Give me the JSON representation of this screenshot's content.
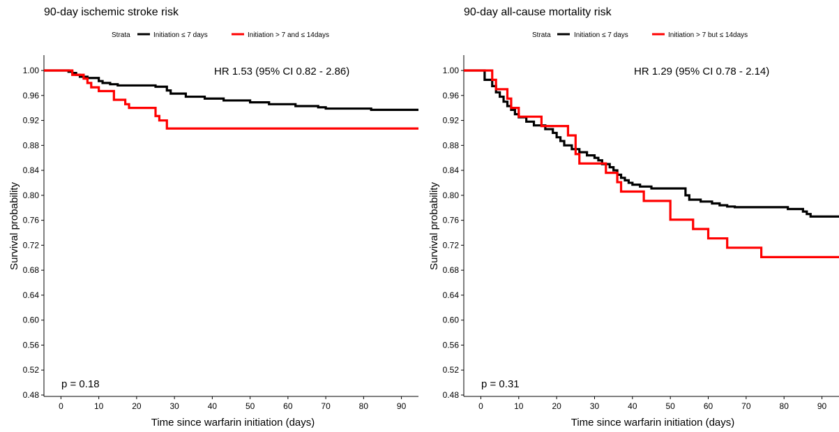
{
  "chart_data": [
    {
      "type": "line",
      "title": "90-day ischemic stroke risk",
      "legend_title": "Strata",
      "legend_position": "top",
      "xlabel": "Time since warfarin initiation (days)",
      "ylabel": "Survival probability",
      "xlim": [
        -4.5,
        94.5
      ],
      "ylim": [
        0.48,
        1.0
      ],
      "xticks": [
        0,
        10,
        20,
        30,
        40,
        50,
        60,
        70,
        80,
        90
      ],
      "yticks": [
        0.48,
        0.52,
        0.56,
        0.6,
        0.64,
        0.68,
        0.72,
        0.76,
        0.8,
        0.84,
        0.88,
        0.92,
        0.96,
        1.0
      ],
      "hr_text": "HR 1.53 (95% CI 0.82 - 2.86)",
      "p_text": "p = 0.18",
      "step": true,
      "series": [
        {
          "name": "Initiation ≤ 7 days",
          "color": "#000000",
          "x": [
            -4.5,
            2,
            3,
            4,
            5,
            7,
            10,
            11,
            13,
            15,
            25,
            28,
            29,
            33,
            38,
            43,
            50,
            55,
            62,
            68,
            70,
            82,
            94.5
          ],
          "y": [
            1.0,
            0.998,
            0.996,
            0.993,
            0.99,
            0.988,
            0.983,
            0.98,
            0.978,
            0.976,
            0.974,
            0.968,
            0.963,
            0.958,
            0.955,
            0.952,
            0.949,
            0.946,
            0.943,
            0.941,
            0.939,
            0.937,
            0.937
          ]
        },
        {
          "name": "Initiation > 7 and ≤ 14days",
          "color": "#ff0000",
          "x": [
            -4.5,
            3,
            6,
            7,
            8,
            10,
            14,
            17,
            18,
            25,
            26,
            28,
            94.5
          ],
          "y": [
            1.0,
            0.993,
            0.987,
            0.98,
            0.973,
            0.967,
            0.953,
            0.946,
            0.94,
            0.927,
            0.92,
            0.907,
            0.907
          ]
        }
      ]
    },
    {
      "type": "line",
      "title": "90-day all-cause mortality risk",
      "legend_title": "Strata",
      "legend_position": "top",
      "xlabel": "Time since warfarin initiation (days)",
      "ylabel": "Survival probability",
      "xlim": [
        -4.5,
        94.5
      ],
      "ylim": [
        0.48,
        1.0
      ],
      "xticks": [
        0,
        10,
        20,
        30,
        40,
        50,
        60,
        70,
        80,
        90
      ],
      "yticks": [
        0.48,
        0.52,
        0.56,
        0.6,
        0.64,
        0.68,
        0.72,
        0.76,
        0.8,
        0.84,
        0.88,
        0.92,
        0.96,
        1.0
      ],
      "hr_text": "HR 1.29 (95% CI 0.78 - 2.14)",
      "p_text": "p = 0.31",
      "step": true,
      "series": [
        {
          "name": "Initiation ≤ 7 days",
          "color": "#000000",
          "x": [
            -4.5,
            1,
            3,
            4,
            5,
            6,
            7,
            8,
            9,
            10,
            12,
            14,
            17,
            19,
            20,
            21,
            22,
            24,
            26,
            28,
            30,
            31,
            32,
            34,
            35,
            36,
            37,
            38,
            39,
            40,
            42,
            45,
            54,
            55,
            58,
            61,
            63,
            65,
            67,
            72,
            77,
            81,
            85,
            86,
            87,
            94.5
          ],
          "y": [
            1.0,
            0.985,
            0.975,
            0.965,
            0.958,
            0.95,
            0.943,
            0.937,
            0.93,
            0.925,
            0.918,
            0.912,
            0.906,
            0.9,
            0.893,
            0.887,
            0.88,
            0.874,
            0.869,
            0.864,
            0.86,
            0.856,
            0.85,
            0.845,
            0.84,
            0.833,
            0.828,
            0.824,
            0.82,
            0.817,
            0.814,
            0.811,
            0.8,
            0.793,
            0.79,
            0.787,
            0.784,
            0.782,
            0.781,
            0.781,
            0.781,
            0.778,
            0.774,
            0.77,
            0.766,
            0.766
          ]
        },
        {
          "name": "Initiation > 7 but ≤ 14days",
          "color": "#ff0000",
          "x": [
            -4.5,
            3,
            4,
            5,
            7,
            8,
            10,
            13,
            16,
            21,
            23,
            25,
            26,
            29,
            33,
            36,
            37,
            40,
            43,
            50,
            53,
            56,
            60,
            65,
            70,
            74,
            94.5
          ],
          "y": [
            1.0,
            0.985,
            0.97,
            0.97,
            0.955,
            0.94,
            0.926,
            0.926,
            0.911,
            0.911,
            0.896,
            0.866,
            0.851,
            0.851,
            0.836,
            0.821,
            0.806,
            0.806,
            0.791,
            0.761,
            0.761,
            0.746,
            0.731,
            0.716,
            0.716,
            0.701,
            0.701
          ]
        }
      ]
    }
  ]
}
